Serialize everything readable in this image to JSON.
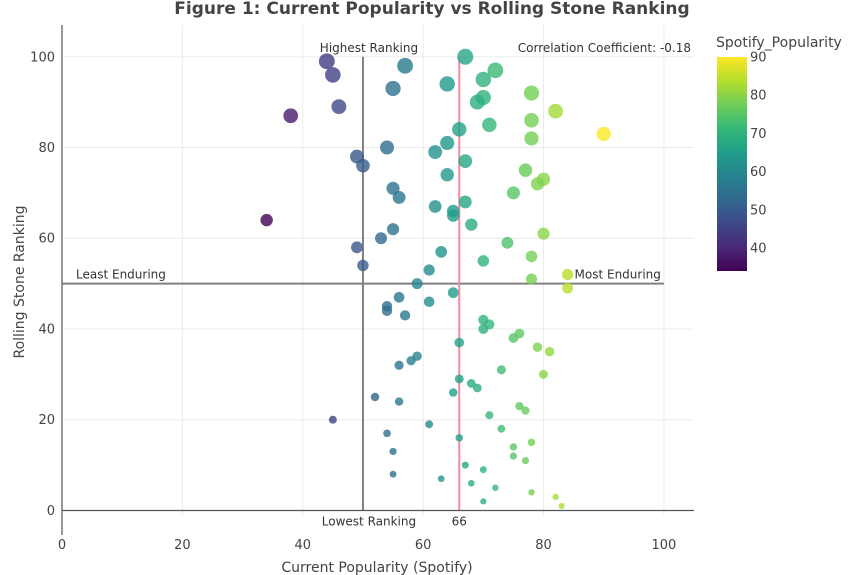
{
  "chart_data": {
    "type": "scatter",
    "title": "Figure 1: Current Popularity vs Rolling Stone Ranking",
    "xlabel": "Current Popularity (Spotify)",
    "ylabel": "Rolling Stone Ranking",
    "xlim": [
      0,
      105
    ],
    "ylim": [
      -1,
      107
    ],
    "xticks": [
      0,
      20,
      40,
      60,
      80,
      100
    ],
    "yticks": [
      0,
      20,
      40,
      60,
      80,
      100
    ],
    "grid": true,
    "colorbar": {
      "title": "Spotify_Popularity",
      "range": [
        34,
        90
      ],
      "ticks": [
        40,
        50,
        60,
        70,
        80,
        90
      ],
      "colorscale": [
        "#440154",
        "#482878",
        "#3e4989",
        "#31688e",
        "#26828e",
        "#1f9e89",
        "#35b779",
        "#6ece58",
        "#b5de2b",
        "#fde725"
      ]
    },
    "reference_lines": {
      "vertical_gray": {
        "x": 50,
        "y_from": 0,
        "y_to": 100
      },
      "horizontal_gray": {
        "y": 50,
        "x_from": 0,
        "x_to": 100
      },
      "vertical_pink": {
        "x": 66,
        "y_from": 0,
        "y_to": 100
      }
    },
    "annotations": {
      "highest": "Highest Ranking",
      "lowest": "Lowest Ranking",
      "least": "Least Enduring",
      "most": "Most Enduring",
      "correlation": "Correlation Coefficient:  -0.18",
      "mean_value": "66"
    },
    "points": [
      {
        "x": 67,
        "y": 100
      },
      {
        "x": 44,
        "y": 99
      },
      {
        "x": 57,
        "y": 98
      },
      {
        "x": 72,
        "y": 97
      },
      {
        "x": 45,
        "y": 96
      },
      {
        "x": 70,
        "y": 95
      },
      {
        "x": 64,
        "y": 94
      },
      {
        "x": 55,
        "y": 93
      },
      {
        "x": 78,
        "y": 92
      },
      {
        "x": 70,
        "y": 91
      },
      {
        "x": 69,
        "y": 90
      },
      {
        "x": 46,
        "y": 89
      },
      {
        "x": 82,
        "y": 88
      },
      {
        "x": 38,
        "y": 87
      },
      {
        "x": 78,
        "y": 86
      },
      {
        "x": 71,
        "y": 85
      },
      {
        "x": 66,
        "y": 84
      },
      {
        "x": 90,
        "y": 83
      },
      {
        "x": 78,
        "y": 82
      },
      {
        "x": 64,
        "y": 81
      },
      {
        "x": 54,
        "y": 80
      },
      {
        "x": 62,
        "y": 79
      },
      {
        "x": 49,
        "y": 78
      },
      {
        "x": 67,
        "y": 77
      },
      {
        "x": 50,
        "y": 76
      },
      {
        "x": 77,
        "y": 75
      },
      {
        "x": 64,
        "y": 74
      },
      {
        "x": 80,
        "y": 73
      },
      {
        "x": 79,
        "y": 72
      },
      {
        "x": 55,
        "y": 71
      },
      {
        "x": 75,
        "y": 70
      },
      {
        "x": 56,
        "y": 69
      },
      {
        "x": 67,
        "y": 68
      },
      {
        "x": 62,
        "y": 67
      },
      {
        "x": 65,
        "y": 66
      },
      {
        "x": 65,
        "y": 65
      },
      {
        "x": 34,
        "y": 64
      },
      {
        "x": 68,
        "y": 63
      },
      {
        "x": 55,
        "y": 62
      },
      {
        "x": 80,
        "y": 61
      },
      {
        "x": 53,
        "y": 60
      },
      {
        "x": 74,
        "y": 59
      },
      {
        "x": 49,
        "y": 58
      },
      {
        "x": 63,
        "y": 57
      },
      {
        "x": 78,
        "y": 56
      },
      {
        "x": 70,
        "y": 55
      },
      {
        "x": 50,
        "y": 54
      },
      {
        "x": 61,
        "y": 53
      },
      {
        "x": 84,
        "y": 52
      },
      {
        "x": 78,
        "y": 51
      },
      {
        "x": 59,
        "y": 50
      },
      {
        "x": 84,
        "y": 49
      },
      {
        "x": 65,
        "y": 48
      },
      {
        "x": 56,
        "y": 47
      },
      {
        "x": 61,
        "y": 46
      },
      {
        "x": 54,
        "y": 45
      },
      {
        "x": 54,
        "y": 44
      },
      {
        "x": 57,
        "y": 43
      },
      {
        "x": 70,
        "y": 42
      },
      {
        "x": 71,
        "y": 41
      },
      {
        "x": 70,
        "y": 40
      },
      {
        "x": 76,
        "y": 39
      },
      {
        "x": 75,
        "y": 38
      },
      {
        "x": 66,
        "y": 37
      },
      {
        "x": 79,
        "y": 36
      },
      {
        "x": 81,
        "y": 35
      },
      {
        "x": 59,
        "y": 34
      },
      {
        "x": 58,
        "y": 33
      },
      {
        "x": 56,
        "y": 32
      },
      {
        "x": 73,
        "y": 31
      },
      {
        "x": 80,
        "y": 30
      },
      {
        "x": 66,
        "y": 29
      },
      {
        "x": 68,
        "y": 28
      },
      {
        "x": 69,
        "y": 27
      },
      {
        "x": 65,
        "y": 26
      },
      {
        "x": 52,
        "y": 25
      },
      {
        "x": 56,
        "y": 24
      },
      {
        "x": 76,
        "y": 23
      },
      {
        "x": 77,
        "y": 22
      },
      {
        "x": 71,
        "y": 21
      },
      {
        "x": 45,
        "y": 20
      },
      {
        "x": 61,
        "y": 19
      },
      {
        "x": 73,
        "y": 18
      },
      {
        "x": 54,
        "y": 17
      },
      {
        "x": 66,
        "y": 16
      },
      {
        "x": 78,
        "y": 15
      },
      {
        "x": 75,
        "y": 14
      },
      {
        "x": 55,
        "y": 13
      },
      {
        "x": 75,
        "y": 12
      },
      {
        "x": 77,
        "y": 11
      },
      {
        "x": 67,
        "y": 10
      },
      {
        "x": 70,
        "y": 9
      },
      {
        "x": 55,
        "y": 8
      },
      {
        "x": 63,
        "y": 7
      },
      {
        "x": 68,
        "y": 6
      },
      {
        "x": 72,
        "y": 5
      },
      {
        "x": 78,
        "y": 4
      },
      {
        "x": 82,
        "y": 3
      },
      {
        "x": 70,
        "y": 2
      },
      {
        "x": 83,
        "y": 1
      }
    ]
  }
}
